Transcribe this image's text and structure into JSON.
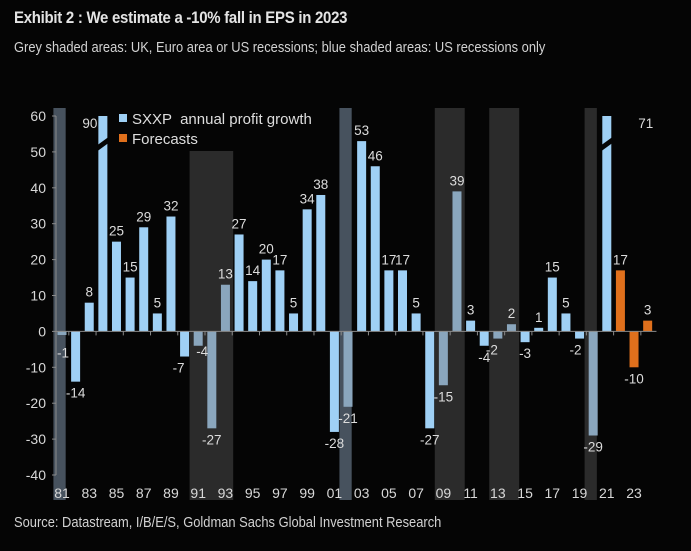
{
  "header": {
    "title": "Exhibit 2 : We estimate a -10% fall in EPS in 2023",
    "subtitle": "Grey shaded areas: UK, Euro area or US recessions; blue shaded areas: US recessions only"
  },
  "footer": {
    "source": "Source: Datastream, I/B/E/S, Goldman Sachs Global Investment Research"
  },
  "colors": {
    "background": "#050505",
    "bar": "#9fd0f5",
    "bar_in_shade": "#8aa6bd",
    "forecast": "#e0701c",
    "grey_shade": "#2b2b2b",
    "blue_shade": "#47525e",
    "axis": "#8a8a8a"
  },
  "chart_data": {
    "type": "bar",
    "title": "Exhibit 2 : We estimate a -10% fall in EPS in 2023",
    "xlabel": "",
    "ylabel": "",
    "ylim": [
      -40,
      60
    ],
    "yticks": [
      60,
      50,
      40,
      30,
      20,
      10,
      0,
      -10,
      -20,
      -30,
      -40
    ],
    "xtick_labels": [
      "81",
      "83",
      "85",
      "87",
      "89",
      "91",
      "93",
      "95",
      "97",
      "99",
      "01",
      "03",
      "05",
      "07",
      "09",
      "11",
      "13",
      "15",
      "17",
      "19",
      "21",
      "23"
    ],
    "legend": {
      "position": "top-left",
      "entries": [
        {
          "name": "SXXP  annual profit growth",
          "color": "#9fd0f5"
        },
        {
          "name": "Forecasts",
          "color": "#e0701c"
        }
      ]
    },
    "categories": [
      1981,
      1982,
      1983,
      1984,
      1985,
      1986,
      1987,
      1988,
      1989,
      1990,
      1991,
      1992,
      1993,
      1994,
      1995,
      1996,
      1997,
      1998,
      1999,
      2000,
      2001,
      2002,
      2003,
      2004,
      2005,
      2006,
      2007,
      2008,
      2009,
      2010,
      2011,
      2012,
      2013,
      2014,
      2015,
      2016,
      2017,
      2018,
      2019,
      2020,
      2021,
      2022,
      2023,
      2024
    ],
    "series": [
      {
        "name": "SXXP  annual profit growth",
        "values": [
          -1,
          -14,
          8,
          90,
          25,
          15,
          29,
          5,
          32,
          -7,
          -4,
          -27,
          13,
          27,
          14,
          20,
          17,
          5,
          34,
          38,
          -28,
          -21,
          53,
          46,
          17,
          17,
          5,
          -27,
          -15,
          39,
          3,
          -4,
          -2,
          2,
          -3,
          1,
          15,
          5,
          -2,
          -29,
          71,
          null,
          null,
          null
        ]
      },
      {
        "name": "Forecasts",
        "values": [
          null,
          null,
          null,
          null,
          null,
          null,
          null,
          null,
          null,
          null,
          null,
          null,
          null,
          null,
          null,
          null,
          null,
          null,
          null,
          null,
          null,
          null,
          null,
          null,
          null,
          null,
          null,
          null,
          null,
          null,
          null,
          null,
          null,
          null,
          null,
          null,
          null,
          null,
          null,
          null,
          null,
          17,
          -10,
          3
        ]
      }
    ],
    "broken_bars": [
      1984,
      2021
    ],
    "shaded_periods": [
      {
        "type": "blue",
        "label": "US recession only",
        "start": 1980.7,
        "end": 1981.6
      },
      {
        "type": "grey",
        "label": "UK, Euro area or US recession",
        "start": 1990.7,
        "end": 1993.9
      },
      {
        "type": "blue",
        "label": "US recession only",
        "start": 2001.7,
        "end": 2002.6
      },
      {
        "type": "grey",
        "label": "UK, Euro area or US recession",
        "start": 2008.7,
        "end": 2010.9
      },
      {
        "type": "grey",
        "label": "UK, Euro area or US recession",
        "start": 2012.7,
        "end": 2014.9
      },
      {
        "type": "grey",
        "label": "UK, Euro area or US recession",
        "start": 2019.7,
        "end": 2020.6
      }
    ]
  }
}
